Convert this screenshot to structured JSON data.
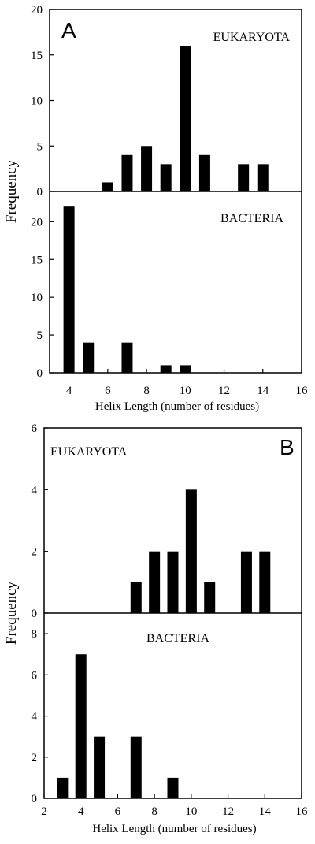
{
  "chart_data": [
    {
      "type": "bar",
      "panel_letter": "A",
      "ylabel": "Frequency",
      "xlabel": "Helix Length (number of residues)",
      "xlim": [
        3,
        16
      ],
      "x_ticks": [
        4,
        6,
        8,
        10,
        12,
        14,
        16
      ],
      "subplots": [
        {
          "label": "EUKARYOTA",
          "ylim": [
            0,
            20
          ],
          "y_ticks": [
            0,
            5,
            10,
            15,
            20
          ],
          "x": [
            4,
            5,
            6,
            7,
            8,
            9,
            10,
            11,
            12,
            13,
            14
          ],
          "values": [
            0,
            0,
            1,
            4,
            5,
            3,
            16,
            4,
            0,
            3,
            3
          ]
        },
        {
          "label": "BACTERIA",
          "ylim": [
            0,
            24
          ],
          "y_ticks": [
            0,
            5,
            10,
            15,
            20
          ],
          "x": [
            4,
            5,
            6,
            7,
            8,
            9,
            10,
            11,
            12,
            13,
            14
          ],
          "values": [
            22,
            4,
            0,
            4,
            0,
            1,
            1,
            0,
            0,
            0,
            0
          ]
        }
      ]
    },
    {
      "type": "bar",
      "panel_letter": "B",
      "ylabel": "Frequency",
      "xlabel": "Helix Length (number of residues)",
      "xlim": [
        2,
        16
      ],
      "x_ticks": [
        2,
        4,
        6,
        8,
        10,
        12,
        14,
        16
      ],
      "subplots": [
        {
          "label": "EUKARYOTA",
          "ylim": [
            0,
            6
          ],
          "y_ticks": [
            0,
            2,
            4,
            6
          ],
          "x": [
            3,
            4,
            5,
            6,
            7,
            8,
            9,
            10,
            11,
            12,
            13,
            14
          ],
          "values": [
            0,
            0,
            0,
            0,
            1,
            2,
            2,
            4,
            1,
            0,
            2,
            2
          ]
        },
        {
          "label": "BACTERIA",
          "ylim": [
            0,
            9
          ],
          "y_ticks": [
            0,
            2,
            4,
            6,
            8
          ],
          "x": [
            3,
            4,
            5,
            6,
            7,
            8,
            9,
            10,
            11,
            12,
            13,
            14
          ],
          "values": [
            1,
            7,
            3,
            0,
            3,
            0,
            1,
            0,
            0,
            0,
            0,
            0
          ]
        }
      ]
    }
  ],
  "colors": {
    "bar": "#000000",
    "axis": "#000000",
    "background": "#ffffff"
  }
}
